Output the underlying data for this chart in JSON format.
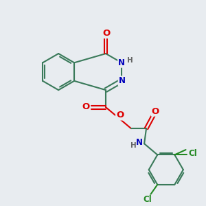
{
  "bg_color": "#e8ecf0",
  "bond_color": "#3a7a5a",
  "bond_width": 1.5,
  "atom_colors": {
    "O": "#dd0000",
    "N": "#0000bb",
    "H": "#666666",
    "Cl": "#228822",
    "C": "#3a7a5a"
  },
  "font_size": 8.5
}
